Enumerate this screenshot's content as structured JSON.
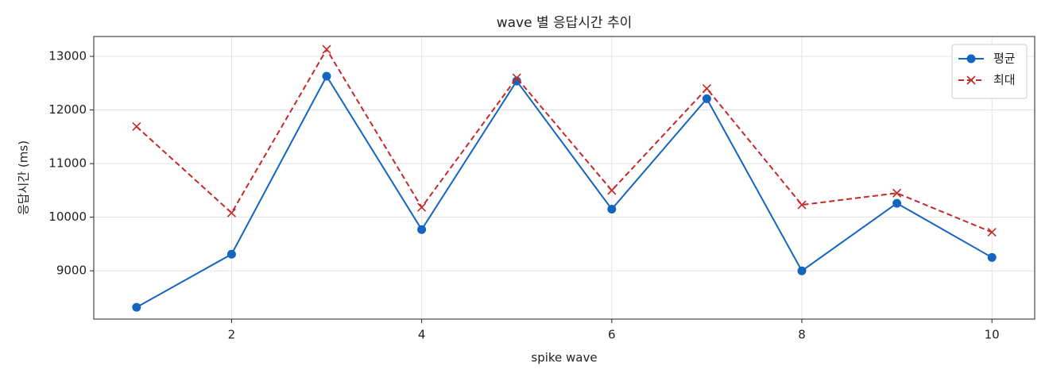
{
  "chart_data": {
    "type": "line",
    "title": "wave 별 응답시간 추이",
    "xlabel": "spike wave",
    "ylabel": "응답시간 (ms)",
    "x": [
      1,
      2,
      3,
      4,
      5,
      6,
      7,
      8,
      9,
      10
    ],
    "series": [
      {
        "name": "평균",
        "color": "#1565c0",
        "marker": "o",
        "linestyle": "solid",
        "values": [
          8320,
          9310,
          12630,
          9770,
          12540,
          10150,
          12210,
          9000,
          10260,
          9250
        ]
      },
      {
        "name": "최대",
        "color": "#c62828",
        "marker": "x",
        "linestyle": "dashed",
        "values": [
          11690,
          10080,
          13130,
          10185,
          12600,
          10500,
          12400,
          10230,
          10450,
          9720
        ]
      }
    ],
    "xlim": [
      0.55,
      10.45
    ],
    "xticks": [
      2,
      4,
      6,
      8,
      10
    ],
    "ylim": [
      8100,
      13370
    ],
    "yticks": [
      9000,
      10000,
      11000,
      12000,
      13000
    ],
    "grid": true,
    "legend": "upper right"
  }
}
